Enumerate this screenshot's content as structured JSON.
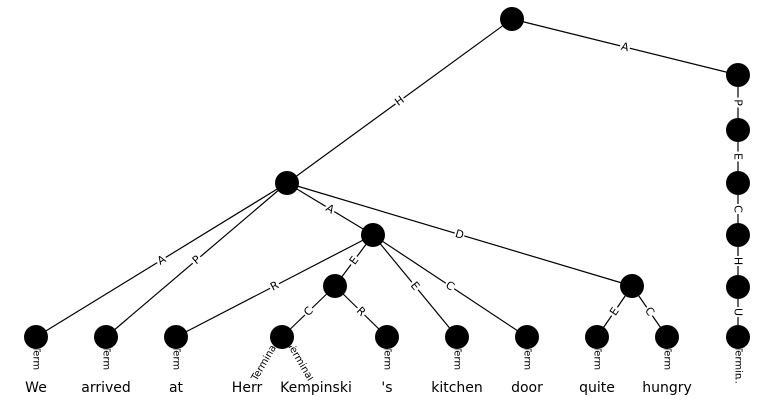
{
  "edges": [
    {
      "id": "e-root-hnode",
      "label": "H"
    },
    {
      "id": "e-root-a1",
      "label": "A"
    },
    {
      "id": "e-hnode-we",
      "label": "A"
    },
    {
      "id": "e-hnode-arrived",
      "label": "P"
    },
    {
      "id": "e-hnode-anode",
      "label": "A"
    },
    {
      "id": "e-hnode-dnode",
      "label": "D"
    },
    {
      "id": "e-anode-at",
      "label": "R"
    },
    {
      "id": "e-anode-enode",
      "label": "E"
    },
    {
      "id": "e-anode-kitchen",
      "label": "E"
    },
    {
      "id": "e-anode-door",
      "label": "C"
    },
    {
      "id": "e-enode-cnode",
      "label": "C"
    },
    {
      "id": "e-enode-s",
      "label": "R"
    },
    {
      "id": "e-dnode-quite",
      "label": "E"
    },
    {
      "id": "e-dnode-hungry",
      "label": "C"
    },
    {
      "id": "e-a1-a2",
      "label": "P"
    },
    {
      "id": "e-a2-a3",
      "label": "E"
    },
    {
      "id": "e-a3-a4",
      "label": "C"
    },
    {
      "id": "e-a4-a5",
      "label": "H"
    },
    {
      "id": "e-a5-a6",
      "label": "U"
    }
  ],
  "terminal_label": "Terminal",
  "words": [
    "We",
    "arrived",
    "at",
    "Herr",
    "Kempinski",
    "'s",
    "kitchen",
    "door",
    "quite",
    "hungry",
    "."
  ],
  "truncated_word": "..."
}
